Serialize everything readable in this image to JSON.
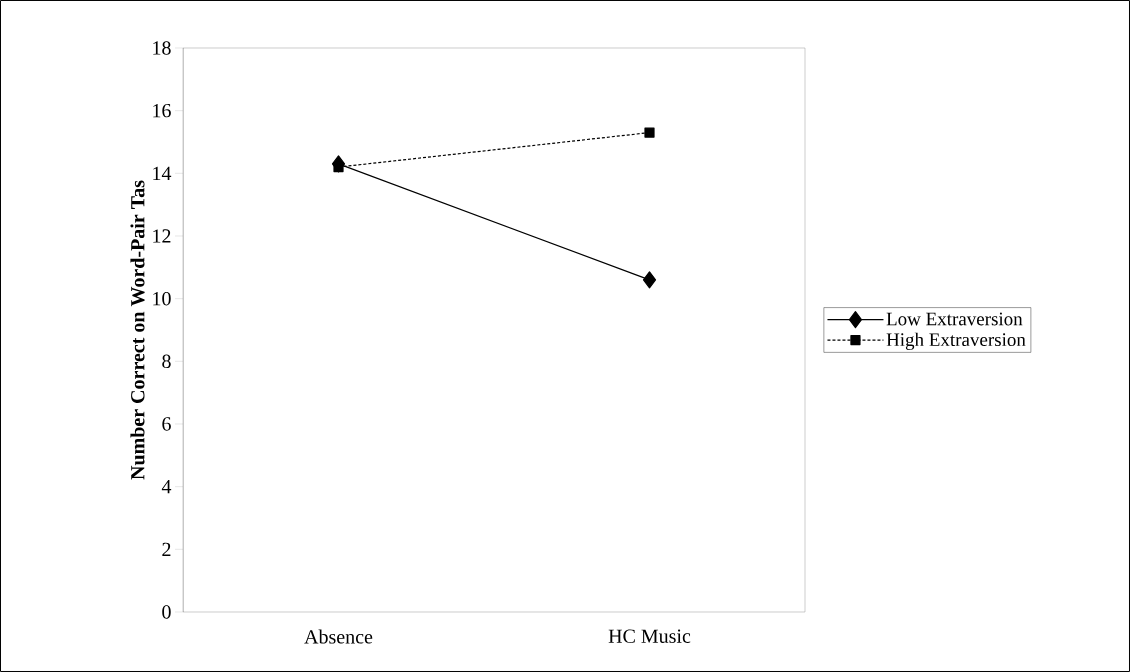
{
  "chart_data": {
    "type": "line",
    "ylabel": "Number Correct on Word-Pair Tas",
    "categories": [
      "Absence",
      "HC Music"
    ],
    "series": [
      {
        "name": "Low Extraversion",
        "color": "#000000",
        "values": [
          14.3,
          10.6
        ],
        "marker": "diamond",
        "line_style": "solid"
      },
      {
        "name": "High Extraversion",
        "color": "#000000",
        "values": [
          14.2,
          15.3
        ],
        "marker": "square",
        "line_style": "dotted"
      }
    ],
    "ylim": [
      0,
      18
    ],
    "yticks": [
      0,
      2,
      4,
      6,
      8,
      10,
      12,
      14,
      16,
      18
    ],
    "grid": false,
    "legend": "right"
  }
}
